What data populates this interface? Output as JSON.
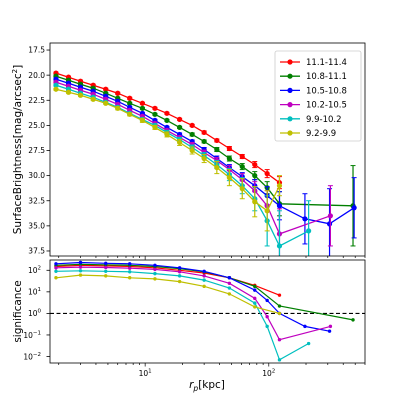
{
  "chart_data": [
    {
      "type": "line",
      "ylabel": "SurfaceBrightness[mag/arcsec²]",
      "ylabel_parts": {
        "main": "SurfaceBrightness[mag/arcsec",
        "sup": "2",
        "close": "]"
      },
      "xscale": "log",
      "xlim": [
        1.7,
        600
      ],
      "ylim": [
        38.0,
        16.8
      ],
      "y_inverted": true,
      "yticks": [
        "17.5",
        "20.0",
        "22.5",
        "25.0",
        "27.5",
        "30.0",
        "32.5",
        "35.0",
        "37.5"
      ],
      "ytick_values": [
        17.5,
        20.0,
        22.5,
        25.0,
        27.5,
        30.0,
        32.5,
        35.0,
        37.5
      ],
      "legend_position": "top-right",
      "grid": false,
      "series": [
        {
          "name": "11.1-11.4",
          "color": "#ff0000",
          "x": [
            1.9,
            2.4,
            3.0,
            3.8,
            4.8,
            6.0,
            7.5,
            9.5,
            12,
            15,
            19,
            24,
            30,
            38,
            48,
            61,
            77,
            97,
            122
          ],
          "y": [
            19.8,
            20.2,
            20.6,
            21.0,
            21.4,
            21.8,
            22.3,
            22.8,
            23.3,
            23.8,
            24.4,
            25.0,
            25.7,
            26.5,
            27.3,
            28.1,
            28.9,
            29.8,
            30.7
          ],
          "err": [
            0.1,
            0.1,
            0.1,
            0.1,
            0.1,
            0.1,
            0.1,
            0.1,
            0.1,
            0.1,
            0.1,
            0.1,
            0.15,
            0.15,
            0.2,
            0.2,
            0.3,
            0.4,
            0.6
          ]
        },
        {
          "name": "10.8-11.1",
          "color": "#007f00",
          "x": [
            1.9,
            2.4,
            3.0,
            3.8,
            4.8,
            6.0,
            7.5,
            9.5,
            12,
            15,
            19,
            24,
            30,
            38,
            48,
            61,
            77,
            97,
            122,
            480
          ],
          "y": [
            20.1,
            20.5,
            20.9,
            21.3,
            21.8,
            22.3,
            22.8,
            23.3,
            23.9,
            24.5,
            25.2,
            25.9,
            26.6,
            27.4,
            28.3,
            29.1,
            30.0,
            31.2,
            32.8,
            33.0
          ],
          "err": [
            0.1,
            0.1,
            0.1,
            0.1,
            0.1,
            0.1,
            0.1,
            0.1,
            0.1,
            0.1,
            0.1,
            0.15,
            0.15,
            0.2,
            0.25,
            0.3,
            0.4,
            0.6,
            1.2,
            4.0
          ]
        },
        {
          "name": "10.5-10.8",
          "color": "#0000ff",
          "x": [
            1.9,
            2.4,
            3.0,
            3.8,
            4.8,
            6.0,
            7.5,
            9.5,
            12,
            15,
            19,
            24,
            30,
            38,
            48,
            61,
            77,
            97,
            122,
            196,
            310,
            490
          ],
          "y": [
            20.4,
            20.8,
            21.2,
            21.6,
            22.1,
            22.6,
            23.2,
            23.8,
            24.5,
            25.2,
            25.9,
            26.6,
            27.4,
            28.3,
            29.2,
            30.1,
            31.0,
            32.0,
            33.0,
            34.3,
            34.8,
            33.2
          ],
          "err": [
            0.1,
            0.1,
            0.1,
            0.1,
            0.1,
            0.1,
            0.1,
            0.1,
            0.1,
            0.1,
            0.15,
            0.15,
            0.2,
            0.25,
            0.3,
            0.4,
            0.6,
            0.9,
            1.4,
            2.5,
            3.5,
            3.0
          ]
        },
        {
          "name": "10.2-10.5",
          "color": "#bf00bf",
          "x": [
            1.9,
            2.4,
            3.0,
            3.8,
            4.8,
            6.0,
            7.5,
            9.5,
            12,
            15,
            19,
            24,
            30,
            38,
            48,
            61,
            77,
            97,
            122,
            315
          ],
          "y": [
            20.7,
            21.1,
            21.5,
            21.9,
            22.4,
            22.9,
            23.5,
            24.1,
            24.8,
            25.5,
            26.2,
            26.9,
            27.7,
            28.5,
            29.4,
            30.4,
            31.5,
            33.0,
            35.8,
            34.0
          ],
          "err": [
            0.1,
            0.1,
            0.1,
            0.1,
            0.1,
            0.1,
            0.1,
            0.1,
            0.1,
            0.15,
            0.15,
            0.2,
            0.25,
            0.3,
            0.4,
            0.6,
            0.9,
            1.5,
            2.5,
            3.0
          ]
        },
        {
          "name": "9.9-10.2",
          "color": "#00bfbf",
          "x": [
            1.9,
            2.4,
            3.0,
            3.8,
            4.8,
            6.0,
            7.5,
            9.5,
            12,
            15,
            19,
            24,
            30,
            38,
            48,
            61,
            77,
            97,
            122,
            210
          ],
          "y": [
            21.0,
            21.4,
            21.8,
            22.2,
            22.7,
            23.2,
            23.8,
            24.4,
            25.0,
            25.7,
            26.4,
            27.2,
            28.0,
            28.9,
            29.9,
            31.0,
            32.3,
            34.5,
            37.0,
            35.5
          ],
          "err": [
            0.1,
            0.1,
            0.1,
            0.1,
            0.1,
            0.1,
            0.1,
            0.15,
            0.15,
            0.2,
            0.2,
            0.25,
            0.3,
            0.4,
            0.6,
            0.8,
            1.2,
            2.5,
            3.5,
            3.0
          ]
        },
        {
          "name": "9.2-9.9",
          "color": "#bfbf00",
          "x": [
            1.9,
            2.4,
            3.0,
            3.8,
            4.8,
            6.0,
            7.5,
            9.5,
            12,
            15,
            19,
            24,
            30,
            38,
            48,
            61,
            77,
            97,
            122
          ],
          "y": [
            21.4,
            21.7,
            22.0,
            22.4,
            22.8,
            23.3,
            23.9,
            24.5,
            25.2,
            25.9,
            26.7,
            27.5,
            28.3,
            29.2,
            30.2,
            31.3,
            32.6,
            33.5,
            31.0
          ],
          "err": [
            0.1,
            0.1,
            0.1,
            0.1,
            0.1,
            0.15,
            0.15,
            0.2,
            0.2,
            0.25,
            0.3,
            0.35,
            0.4,
            0.6,
            0.8,
            1.0,
            1.5,
            2.0,
            1.0
          ]
        }
      ]
    },
    {
      "type": "line",
      "ylabel": "significance",
      "xlabel_parts": {
        "r": "r",
        "sub": "p",
        "unit": "[kpc]"
      },
      "xscale": "log",
      "yscale": "log",
      "xlim": [
        1.7,
        600
      ],
      "ylim": [
        0.005,
        300
      ],
      "xticks": [
        "10",
        "10"
      ],
      "xtick_exps": [
        "1",
        "2"
      ],
      "xtick_values": [
        10,
        100
      ],
      "yticks": [
        "10",
        "10",
        "10",
        "10",
        "10"
      ],
      "ytick_exps": [
        "2",
        "1",
        "0",
        "−1",
        "−2"
      ],
      "ytick_values": [
        100,
        10,
        1,
        0.1,
        0.01
      ],
      "reference_line": {
        "y": 1,
        "style": "dashed",
        "color": "#000000"
      },
      "series": [
        {
          "name": "11.1-11.4",
          "color": "#ff0000",
          "x": [
            1.9,
            3.0,
            4.8,
            7.5,
            12,
            19,
            30,
            48,
            77,
            122
          ],
          "y": [
            150,
            170,
            160,
            150,
            130,
            100,
            75,
            45,
            20,
            7
          ]
        },
        {
          "name": "10.8-11.1",
          "color": "#007f00",
          "x": [
            1.9,
            3.0,
            4.8,
            7.5,
            12,
            19,
            30,
            48,
            77,
            122,
            480
          ],
          "y": [
            170,
            190,
            180,
            170,
            150,
            120,
            85,
            45,
            18,
            2.2,
            0.5
          ]
        },
        {
          "name": "10.5-10.8",
          "color": "#0000ff",
          "x": [
            1.9,
            3.0,
            4.8,
            7.5,
            12,
            19,
            30,
            48,
            77,
            97,
            122,
            196,
            310
          ],
          "y": [
            200,
            230,
            210,
            200,
            170,
            130,
            90,
            45,
            12,
            4,
            1,
            0.25,
            0.15
          ]
        },
        {
          "name": "10.2-10.5",
          "color": "#bf00bf",
          "x": [
            1.9,
            3.0,
            4.8,
            7.5,
            12,
            19,
            30,
            48,
            77,
            97,
            122,
            315
          ],
          "y": [
            130,
            140,
            135,
            125,
            110,
            85,
            55,
            25,
            5,
            0.7,
            0.06,
            0.25
          ]
        },
        {
          "name": "9.9-10.2",
          "color": "#00bfbf",
          "x": [
            1.9,
            3.0,
            4.8,
            7.5,
            12,
            19,
            30,
            48,
            77,
            97,
            122,
            210
          ],
          "y": [
            90,
            95,
            90,
            85,
            70,
            55,
            35,
            15,
            3,
            0.25,
            0.007,
            0.04
          ]
        },
        {
          "name": "9.2-9.9",
          "color": "#bfbf00",
          "x": [
            1.9,
            3.0,
            4.8,
            7.5,
            12,
            19,
            30,
            48,
            77,
            122
          ],
          "y": [
            45,
            60,
            55,
            45,
            40,
            30,
            18,
            8,
            2,
            1
          ]
        }
      ]
    }
  ]
}
